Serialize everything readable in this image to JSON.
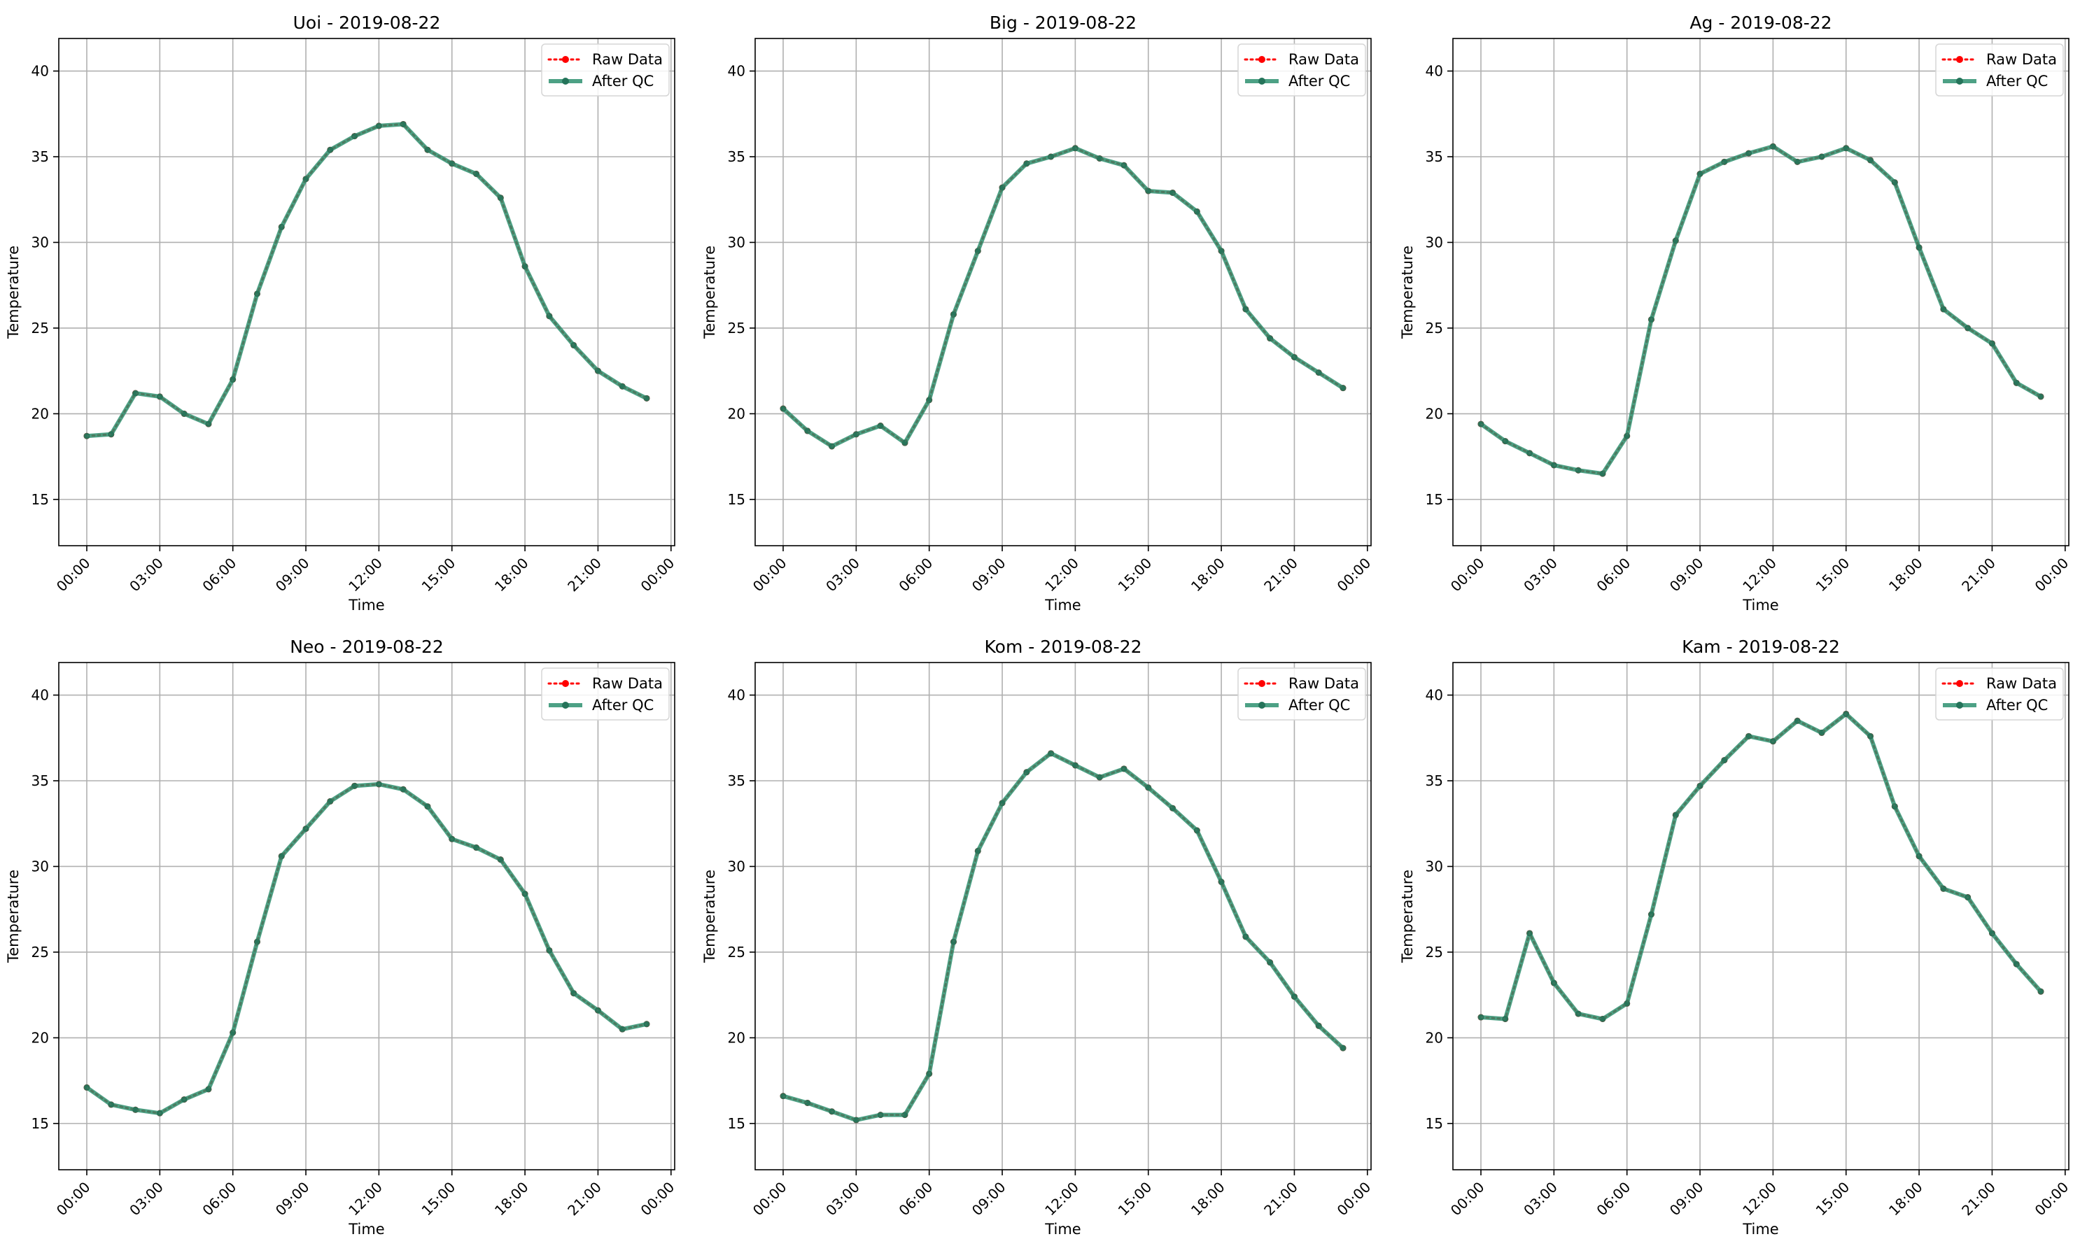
{
  "chart_data": [
    {
      "type": "line",
      "title": "Uoi - 2019-08-22",
      "xlabel": "Time",
      "ylabel": "Temperature",
      "xticks": [
        "00:00",
        "03:00",
        "06:00",
        "09:00",
        "12:00",
        "15:00",
        "18:00",
        "21:00",
        "00:00"
      ],
      "yticks": [
        15,
        20,
        25,
        30,
        35,
        40
      ],
      "ylim": [
        12.3,
        41.9
      ],
      "xlim_hours": [
        -1.15,
        24.15
      ],
      "grid": true,
      "legend_position": "top-right",
      "x_hours": [
        0,
        1,
        2,
        3,
        4,
        5,
        6,
        7,
        8,
        9,
        10,
        11,
        12,
        13,
        14,
        15,
        16,
        17,
        18,
        19,
        20,
        21,
        22,
        23
      ],
      "series": [
        {
          "name": "Raw Data",
          "color": "#ff0000",
          "style": "dotted",
          "values": [
            18.7,
            18.8,
            21.2,
            21.0,
            20.0,
            19.4,
            22.0,
            27.0,
            30.9,
            33.7,
            35.4,
            36.2,
            36.8,
            36.9,
            35.4,
            34.6,
            34.0,
            32.6,
            28.6,
            25.7,
            24.0,
            22.5,
            21.6,
            20.9
          ]
        },
        {
          "name": "After QC",
          "color": "#2e9070",
          "style": "solid",
          "values": [
            18.7,
            18.8,
            21.2,
            21.0,
            20.0,
            19.4,
            22.0,
            27.0,
            30.9,
            33.7,
            35.4,
            36.2,
            36.8,
            36.9,
            35.4,
            34.6,
            34.0,
            32.6,
            28.6,
            25.7,
            24.0,
            22.5,
            21.6,
            20.9
          ]
        }
      ]
    },
    {
      "type": "line",
      "title": "Big - 2019-08-22",
      "xlabel": "Time",
      "ylabel": "Temperature",
      "xticks": [
        "00:00",
        "03:00",
        "06:00",
        "09:00",
        "12:00",
        "15:00",
        "18:00",
        "21:00",
        "00:00"
      ],
      "yticks": [
        15,
        20,
        25,
        30,
        35,
        40
      ],
      "ylim": [
        12.3,
        41.9
      ],
      "xlim_hours": [
        -1.15,
        24.15
      ],
      "grid": true,
      "legend_position": "top-right",
      "x_hours": [
        0,
        1,
        2,
        3,
        4,
        5,
        6,
        7,
        8,
        9,
        10,
        11,
        12,
        13,
        14,
        15,
        16,
        17,
        18,
        19,
        20,
        21,
        22,
        23
      ],
      "series": [
        {
          "name": "Raw Data",
          "color": "#ff0000",
          "style": "dotted",
          "values": [
            20.3,
            19.0,
            18.1,
            18.8,
            19.3,
            18.3,
            20.8,
            25.8,
            29.5,
            33.2,
            34.6,
            35.0,
            35.5,
            34.9,
            34.5,
            33.0,
            32.9,
            31.8,
            29.5,
            26.1,
            24.4,
            23.3,
            22.4,
            21.5
          ]
        },
        {
          "name": "After QC",
          "color": "#2e9070",
          "style": "solid",
          "values": [
            20.3,
            19.0,
            18.1,
            18.8,
            19.3,
            18.3,
            20.8,
            25.8,
            29.5,
            33.2,
            34.6,
            35.0,
            35.5,
            34.9,
            34.5,
            33.0,
            32.9,
            31.8,
            29.5,
            26.1,
            24.4,
            23.3,
            22.4,
            21.5
          ]
        }
      ]
    },
    {
      "type": "line",
      "title": "Ag - 2019-08-22",
      "xlabel": "Time",
      "ylabel": "Temperature",
      "xticks": [
        "00:00",
        "03:00",
        "06:00",
        "09:00",
        "12:00",
        "15:00",
        "18:00",
        "21:00",
        "00:00"
      ],
      "yticks": [
        15,
        20,
        25,
        30,
        35,
        40
      ],
      "ylim": [
        12.3,
        41.9
      ],
      "xlim_hours": [
        -1.15,
        24.15
      ],
      "grid": true,
      "legend_position": "top-right",
      "x_hours": [
        0,
        1,
        2,
        3,
        4,
        5,
        6,
        7,
        8,
        9,
        10,
        11,
        12,
        13,
        14,
        15,
        16,
        17,
        18,
        19,
        20,
        21,
        22,
        23
      ],
      "series": [
        {
          "name": "Raw Data",
          "color": "#ff0000",
          "style": "dotted",
          "values": [
            19.4,
            18.4,
            17.7,
            17.0,
            16.7,
            16.5,
            18.7,
            25.5,
            30.1,
            34.0,
            34.7,
            35.2,
            35.6,
            34.7,
            35.0,
            35.5,
            34.8,
            33.5,
            29.7,
            26.1,
            25.0,
            24.1,
            21.8,
            21.0
          ]
        },
        {
          "name": "After QC",
          "color": "#2e9070",
          "style": "solid",
          "values": [
            19.4,
            18.4,
            17.7,
            17.0,
            16.7,
            16.5,
            18.7,
            25.5,
            30.1,
            34.0,
            34.7,
            35.2,
            35.6,
            34.7,
            35.0,
            35.5,
            34.8,
            33.5,
            29.7,
            26.1,
            25.0,
            24.1,
            21.8,
            21.0
          ]
        }
      ]
    },
    {
      "type": "line",
      "title": "Neo - 2019-08-22",
      "xlabel": "Time",
      "ylabel": "Temperature",
      "xticks": [
        "00:00",
        "03:00",
        "06:00",
        "09:00",
        "12:00",
        "15:00",
        "18:00",
        "21:00",
        "00:00"
      ],
      "yticks": [
        15,
        20,
        25,
        30,
        35,
        40
      ],
      "ylim": [
        12.3,
        41.9
      ],
      "xlim_hours": [
        -1.15,
        24.15
      ],
      "grid": true,
      "legend_position": "top-right",
      "x_hours": [
        0,
        1,
        2,
        3,
        4,
        5,
        6,
        7,
        8,
        9,
        10,
        11,
        12,
        13,
        14,
        15,
        16,
        17,
        18,
        19,
        20,
        21,
        22,
        23
      ],
      "series": [
        {
          "name": "Raw Data",
          "color": "#ff0000",
          "style": "dotted",
          "values": [
            17.1,
            16.1,
            15.8,
            15.6,
            16.4,
            17.0,
            20.3,
            25.6,
            30.6,
            32.2,
            33.8,
            34.7,
            34.8,
            34.5,
            33.5,
            31.6,
            31.1,
            30.4,
            28.4,
            25.1,
            22.6,
            21.6,
            20.5,
            20.8
          ]
        },
        {
          "name": "After QC",
          "color": "#2e9070",
          "style": "solid",
          "values": [
            17.1,
            16.1,
            15.8,
            15.6,
            16.4,
            17.0,
            20.3,
            25.6,
            30.6,
            32.2,
            33.8,
            34.7,
            34.8,
            34.5,
            33.5,
            31.6,
            31.1,
            30.4,
            28.4,
            25.1,
            22.6,
            21.6,
            20.5,
            20.8
          ]
        }
      ]
    },
    {
      "type": "line",
      "title": "Kom - 2019-08-22",
      "xlabel": "Time",
      "ylabel": "Temperature",
      "xticks": [
        "00:00",
        "03:00",
        "06:00",
        "09:00",
        "12:00",
        "15:00",
        "18:00",
        "21:00",
        "00:00"
      ],
      "yticks": [
        15,
        20,
        25,
        30,
        35,
        40
      ],
      "ylim": [
        12.3,
        41.9
      ],
      "xlim_hours": [
        -1.15,
        24.15
      ],
      "grid": true,
      "legend_position": "top-right",
      "x_hours": [
        0,
        1,
        2,
        3,
        4,
        5,
        6,
        7,
        8,
        9,
        10,
        11,
        12,
        13,
        14,
        15,
        16,
        17,
        18,
        19,
        20,
        21,
        22,
        23
      ],
      "series": [
        {
          "name": "Raw Data",
          "color": "#ff0000",
          "style": "dotted",
          "values": [
            16.6,
            16.2,
            15.7,
            15.2,
            15.5,
            15.5,
            17.9,
            25.6,
            30.9,
            33.7,
            35.5,
            36.6,
            35.9,
            35.2,
            35.7,
            34.6,
            33.4,
            32.1,
            29.1,
            25.9,
            24.4,
            22.4,
            20.7,
            19.4
          ]
        },
        {
          "name": "After QC",
          "color": "#2e9070",
          "style": "solid",
          "values": [
            16.6,
            16.2,
            15.7,
            15.2,
            15.5,
            15.5,
            17.9,
            25.6,
            30.9,
            33.7,
            35.5,
            36.6,
            35.9,
            35.2,
            35.7,
            34.6,
            33.4,
            32.1,
            29.1,
            25.9,
            24.4,
            22.4,
            20.7,
            19.4
          ]
        }
      ]
    },
    {
      "type": "line",
      "title": "Kam - 2019-08-22",
      "xlabel": "Time",
      "ylabel": "Temperature",
      "xticks": [
        "00:00",
        "03:00",
        "06:00",
        "09:00",
        "12:00",
        "15:00",
        "18:00",
        "21:00",
        "00:00"
      ],
      "yticks": [
        15,
        20,
        25,
        30,
        35,
        40
      ],
      "ylim": [
        12.3,
        41.9
      ],
      "xlim_hours": [
        -1.15,
        24.15
      ],
      "grid": true,
      "legend_position": "top-right",
      "x_hours": [
        0,
        1,
        2,
        3,
        4,
        5,
        6,
        7,
        8,
        9,
        10,
        11,
        12,
        13,
        14,
        15,
        16,
        17,
        18,
        19,
        20,
        21,
        22,
        23
      ],
      "series": [
        {
          "name": "Raw Data",
          "color": "#ff0000",
          "style": "dotted",
          "values": [
            21.2,
            21.1,
            26.1,
            23.2,
            21.4,
            21.1,
            22.0,
            27.2,
            33.0,
            34.7,
            36.2,
            37.6,
            37.3,
            38.5,
            37.8,
            38.9,
            37.6,
            33.5,
            30.6,
            28.7,
            28.2,
            26.1,
            24.3,
            22.7
          ]
        },
        {
          "name": "After QC",
          "color": "#2e9070",
          "style": "solid",
          "values": [
            21.2,
            21.1,
            26.1,
            23.2,
            21.4,
            21.1,
            22.0,
            27.2,
            33.0,
            34.7,
            36.2,
            37.6,
            37.3,
            38.5,
            37.8,
            38.9,
            37.6,
            33.5,
            30.6,
            28.7,
            28.2,
            26.1,
            24.3,
            22.7
          ]
        }
      ]
    }
  ]
}
